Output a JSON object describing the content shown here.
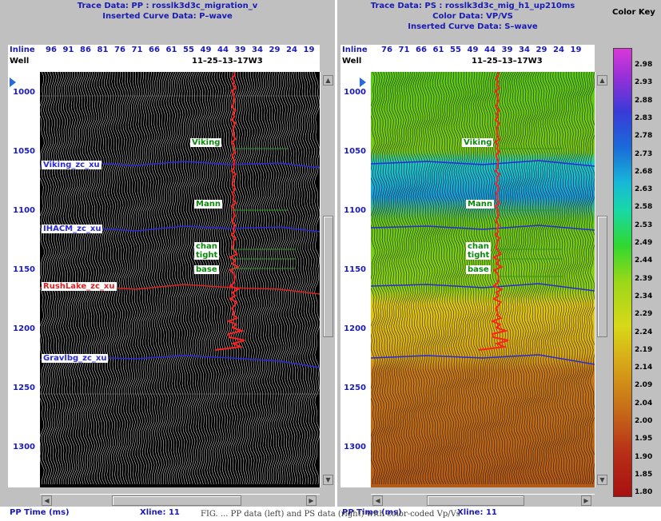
{
  "left_panel": {
    "title_line1": "Trace Data: PP : rosslk3d3c_migration_v",
    "title_line2": "Inserted Curve Data:  P–wave",
    "inline_label": "Inline",
    "well_label": "Well",
    "inline_ticks": [
      "96",
      "91",
      "86",
      "81",
      "76",
      "71",
      "66",
      "61",
      "55",
      "49",
      "44",
      "39",
      "34",
      "29",
      "24",
      "19"
    ],
    "well_name": "11–25–13–17W3",
    "time_ticks": [
      "1000",
      "1050",
      "1100",
      "1150",
      "1200",
      "1250",
      "1300"
    ],
    "horizons": [
      {
        "name": "Viking_zc_xu",
        "color": "#2a2ad8"
      },
      {
        "name": "IHACM_zc_xu",
        "color": "#2a2ad8"
      },
      {
        "name": "RushLake_zc_xu",
        "color": "#e02020"
      },
      {
        "name": "Gravlbg_zc_xu",
        "color": "#2a2ad8"
      }
    ],
    "formations": [
      "Viking",
      "Mann",
      "chan",
      "tight",
      "base"
    ],
    "footer_time": "PP Time (ms)",
    "footer_xline": "Xline: 11"
  },
  "right_panel": {
    "title_line1": "Trace Data: PS : rosslk3d3c_mig_h1_up210ms",
    "title_line2": "Color Data: VP/VS",
    "title_line3": "Inserted Curve Data:  S–wave",
    "inline_label": "Inline",
    "well_label": "Well",
    "inline_ticks": [
      "76",
      "71",
      "66",
      "61",
      "55",
      "49",
      "44",
      "39",
      "34",
      "29",
      "24",
      "19"
    ],
    "well_name": "11–25–13–17W3",
    "time_ticks": [
      "1000",
      "1050",
      "1100",
      "1150",
      "1200",
      "1250",
      "1300"
    ],
    "formations": [
      "Viking",
      "Mann",
      "chan",
      "tight",
      "base"
    ],
    "footer_time": "PP Time (ms)",
    "footer_xline": "Xline: 11"
  },
  "color_key": {
    "title": "Color Key",
    "values": [
      "2.98",
      "2.93",
      "2.88",
      "2.83",
      "2.78",
      "2.73",
      "2.68",
      "2.63",
      "2.58",
      "2.53",
      "2.49",
      "2.44",
      "2.39",
      "2.34",
      "2.29",
      "2.24",
      "2.19",
      "2.14",
      "2.09",
      "2.04",
      "2.00",
      "1.95",
      "1.90",
      "1.85",
      "1.80"
    ]
  },
  "caption": "FIG. ... PP data (left) and PS data (right) with color-coded Vp/Vs"
}
